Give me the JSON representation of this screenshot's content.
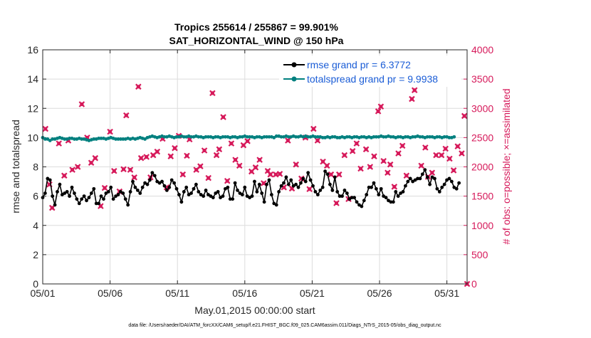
{
  "chart_data": {
    "type": "line",
    "title_line1": "Tropics 255614 / 255867 = 99.901%",
    "title_line2": "SAT_HORIZONTAL_WIND @ 150 hPa",
    "xlabel": "May.01,2015 00:00:00 start",
    "ylabel_left": "rmse and totalspread",
    "ylabel_right": "# of obs: o=possible; ×=assimilated",
    "footer": "data file: /Users/raeder/DAI/ATM_forcXX/CAM6_setup/f.e21.FHIST_BGC.f09_025.CAM6assim.011/Diags_NTrS_2015-05/obs_diag_output.nc",
    "xlim": [
      0,
      31.5
    ],
    "ylim_left": [
      0,
      16
    ],
    "ylim_right": [
      0,
      4000
    ],
    "x_tick_values": [
      0,
      5,
      10,
      15,
      20,
      25,
      30
    ],
    "x_tick_labels": [
      "05/01",
      "05/06",
      "05/11",
      "05/16",
      "05/21",
      "05/26",
      "05/31"
    ],
    "y_left_ticks": [
      0,
      2,
      4,
      6,
      8,
      10,
      12,
      14,
      16
    ],
    "y_right_ticks": [
      0,
      500,
      1000,
      1500,
      2000,
      2500,
      3000,
      3500,
      4000
    ],
    "grid": true,
    "legend_position": "top-right",
    "colors": {
      "rmse": "#000000",
      "spread": "#00807f",
      "obs": "#d6195a",
      "right_axis": "#d6195a",
      "legend_text": "#1a5cd6"
    },
    "series": [
      {
        "name": "rmse grand pr = 6.3772",
        "marker": "circle",
        "values": [
          5.9,
          6.2,
          7.2,
          7.1,
          6.0,
          5.4,
          6.3,
          6.8,
          6.1,
          6.2,
          6.3,
          6.0,
          6.6,
          6.2,
          5.8,
          5.5,
          5.8,
          6.0,
          5.7,
          5.9,
          6.2,
          6.5,
          5.5,
          5.5,
          6.0,
          5.8,
          6.2,
          6.3,
          6.6,
          5.8,
          6.0,
          6.1,
          6.3,
          6.2,
          5.8,
          5.4,
          6.3,
          7.0,
          6.6,
          6.4,
          6.2,
          6.6,
          6.9,
          6.8,
          7.1,
          7.6,
          7.4,
          7.0,
          6.9,
          7.0,
          6.7,
          6.4,
          6.6,
          7.1,
          6.9,
          6.5,
          6.1,
          5.6,
          6.3,
          6.6,
          6.1,
          6.2,
          6.5,
          6.8,
          6.3,
          6.1,
          6.0,
          6.4,
          6.1,
          6.0,
          5.9,
          6.2,
          6.3,
          5.9,
          6.0,
          6.5,
          6.6,
          5.8,
          5.8,
          6.9,
          6.4,
          6.2,
          6.1,
          6.6,
          6.0,
          5.9,
          6.0,
          7.0,
          6.3,
          6.8,
          6.2,
          5.6,
          6.8,
          7.1,
          6.1,
          5.5,
          5.4,
          6.3,
          6.7,
          6.9,
          7.3,
          6.8,
          7.1,
          6.7,
          6.8,
          6.6,
          6.9,
          7.2,
          7.0,
          7.6,
          7.1,
          6.7,
          6.3,
          6.1,
          6.4,
          6.6,
          7.7,
          7.5,
          6.8,
          6.4,
          7.3,
          6.3,
          6.0,
          6.0,
          6.4,
          6.2,
          5.8,
          5.9,
          5.9,
          5.6,
          5.4,
          5.3,
          5.7,
          6.1,
          6.6,
          6.6,
          6.9,
          6.5,
          6.1,
          6.5,
          6.0,
          5.9,
          5.7,
          5.6,
          5.6,
          6.3,
          6.0,
          6.2,
          6.3,
          6.7,
          7.0,
          7.2,
          7.0,
          7.1,
          7.2,
          7.2,
          7.5,
          7.8,
          7.3,
          6.8,
          7.3,
          7.2,
          6.5,
          6.3,
          6.6,
          6.8,
          7.1,
          7.2,
          7.0,
          6.6,
          6.5,
          6.9
        ],
        "x_start": 0,
        "x_step": 0.1807
      },
      {
        "name": "totalspread grand pr = 9.9938",
        "marker": "circle",
        "values": [
          10.0,
          9.9,
          9.9,
          9.8,
          9.9,
          9.9,
          9.95,
          10.0,
          9.95,
          9.9,
          9.9,
          9.95,
          9.95,
          9.9,
          9.9,
          9.95,
          9.9,
          9.9,
          9.85,
          9.8,
          9.85,
          9.9,
          9.9,
          9.95,
          9.95,
          9.95,
          9.9,
          9.95,
          10.0,
          9.95,
          9.9,
          9.9,
          9.9,
          9.9,
          9.9,
          9.95,
          9.9,
          9.95,
          9.9,
          9.95,
          10.0,
          9.95,
          9.9,
          10.0,
          10.05,
          10.1,
          10.05,
          10.0,
          10.05,
          10.1,
          10.05,
          10.05,
          10.1,
          10.05,
          10.0,
          10.05,
          10.05,
          10.1,
          10.05,
          10.05,
          10.1,
          10.05,
          10.05,
          10.1,
          10.05,
          10.05,
          10.0,
          10.05,
          10.05,
          10.05,
          10.0,
          10.05,
          10.05,
          10.0,
          10.05,
          10.05,
          10.05,
          10.0,
          10.05,
          10.05,
          10.0,
          10.05,
          10.05,
          10.1,
          10.05,
          10.05,
          10.05,
          10.0,
          10.05,
          10.05,
          10.0,
          10.05,
          10.05,
          10.05,
          10.05,
          10.0,
          10.1,
          10.1,
          10.05,
          10.05,
          10.1,
          10.05,
          10.05,
          10.1,
          10.05,
          10.05,
          10.1,
          10.05,
          10.1,
          10.05,
          10.05,
          10.1,
          10.05,
          10.05,
          10.05,
          10.0,
          10.0,
          10.05,
          10.0,
          10.05,
          10.05,
          10.0,
          10.0,
          10.05,
          10.0,
          10.05,
          10.05,
          10.0,
          10.05,
          10.05,
          10.0,
          10.05,
          10.05,
          10.0,
          10.05,
          10.0,
          10.05,
          10.05,
          10.05,
          10.1,
          10.05,
          10.05,
          10.1,
          10.05,
          10.05,
          10.0,
          10.05,
          10.05,
          10.0,
          10.05,
          10.05,
          10.0,
          10.05,
          10.05,
          10.1,
          10.05,
          10.05,
          10.0,
          10.05,
          10.05,
          10.05,
          10.0,
          10.05,
          10.05,
          10.0,
          10.05,
          10.05,
          10.0,
          10.0,
          10.05
        ],
        "x_start": 0,
        "x_step": 0.1807
      },
      {
        "name": "obs assimilated",
        "marker": "x",
        "axis": "right",
        "points": [
          [
            0.2,
            2650
          ],
          [
            0.5,
            1700
          ],
          [
            0.7,
            1300
          ],
          [
            1.2,
            2400
          ],
          [
            1.6,
            1850
          ],
          [
            1.9,
            2450
          ],
          [
            2.2,
            1950
          ],
          [
            2.6,
            2000
          ],
          [
            2.9,
            3070
          ],
          [
            3.3,
            2500
          ],
          [
            3.6,
            2070
          ],
          [
            3.9,
            2150
          ],
          [
            4.3,
            1330
          ],
          [
            4.6,
            1640
          ],
          [
            5.0,
            2600
          ],
          [
            5.3,
            1930
          ],
          [
            5.7,
            1580
          ],
          [
            6.0,
            1960
          ],
          [
            6.2,
            2880
          ],
          [
            6.5,
            1950
          ],
          [
            6.8,
            1820
          ],
          [
            7.1,
            3370
          ],
          [
            7.3,
            2150
          ],
          [
            7.7,
            2170
          ],
          [
            8.0,
            1820
          ],
          [
            8.2,
            2200
          ],
          [
            8.5,
            2260
          ],
          [
            8.9,
            2480
          ],
          [
            9.2,
            1650
          ],
          [
            9.5,
            2180
          ],
          [
            9.8,
            2320
          ],
          [
            10.1,
            2530
          ],
          [
            10.4,
            1870
          ],
          [
            10.7,
            2190
          ],
          [
            10.9,
            2470
          ],
          [
            11.4,
            1950
          ],
          [
            11.7,
            2010
          ],
          [
            12.0,
            2280
          ],
          [
            12.3,
            1810
          ],
          [
            12.6,
            3260
          ],
          [
            12.9,
            2200
          ],
          [
            13.1,
            2300
          ],
          [
            13.4,
            2850
          ],
          [
            13.7,
            1760
          ],
          [
            14.0,
            2400
          ],
          [
            14.3,
            2120
          ],
          [
            14.6,
            2020
          ],
          [
            14.9,
            2370
          ],
          [
            15.2,
            2440
          ],
          [
            15.5,
            1920
          ],
          [
            15.8,
            1990
          ],
          [
            16.1,
            2120
          ],
          [
            16.4,
            1720
          ],
          [
            16.7,
            1930
          ],
          [
            16.9,
            1870
          ],
          [
            17.3,
            1870
          ],
          [
            17.6,
            1880
          ],
          [
            17.9,
            1650
          ],
          [
            18.2,
            2450
          ],
          [
            18.5,
            1630
          ],
          [
            18.8,
            2040
          ],
          [
            19.2,
            1800
          ],
          [
            19.5,
            2500
          ],
          [
            19.8,
            1620
          ],
          [
            20.1,
            2650
          ],
          [
            20.4,
            2450
          ],
          [
            20.8,
            2090
          ],
          [
            21.1,
            2020
          ],
          [
            21.4,
            1870
          ],
          [
            21.8,
            1380
          ],
          [
            22.0,
            1870
          ],
          [
            22.4,
            2200
          ],
          [
            22.7,
            1450
          ],
          [
            23.0,
            2270
          ],
          [
            23.3,
            2400
          ],
          [
            23.6,
            1970
          ],
          [
            24.0,
            2300
          ],
          [
            24.3,
            2000
          ],
          [
            24.6,
            2180
          ],
          [
            24.9,
            2950
          ],
          [
            25.1,
            3030
          ],
          [
            25.3,
            2100
          ],
          [
            25.6,
            1900
          ],
          [
            25.8,
            2040
          ],
          [
            26.1,
            1660
          ],
          [
            26.4,
            2230
          ],
          [
            26.7,
            2360
          ],
          [
            27.0,
            1850
          ],
          [
            27.4,
            3160
          ],
          [
            27.6,
            3310
          ],
          [
            28.1,
            2020
          ],
          [
            28.4,
            2330
          ],
          [
            28.6,
            1830
          ],
          [
            28.9,
            1900
          ],
          [
            29.2,
            2200
          ],
          [
            29.6,
            2200
          ],
          [
            29.9,
            2310
          ],
          [
            30.2,
            2140
          ],
          [
            30.5,
            1940
          ],
          [
            30.8,
            2350
          ],
          [
            31.1,
            2230
          ],
          [
            31.3,
            2870
          ],
          [
            31.5,
            0
          ]
        ]
      }
    ]
  }
}
